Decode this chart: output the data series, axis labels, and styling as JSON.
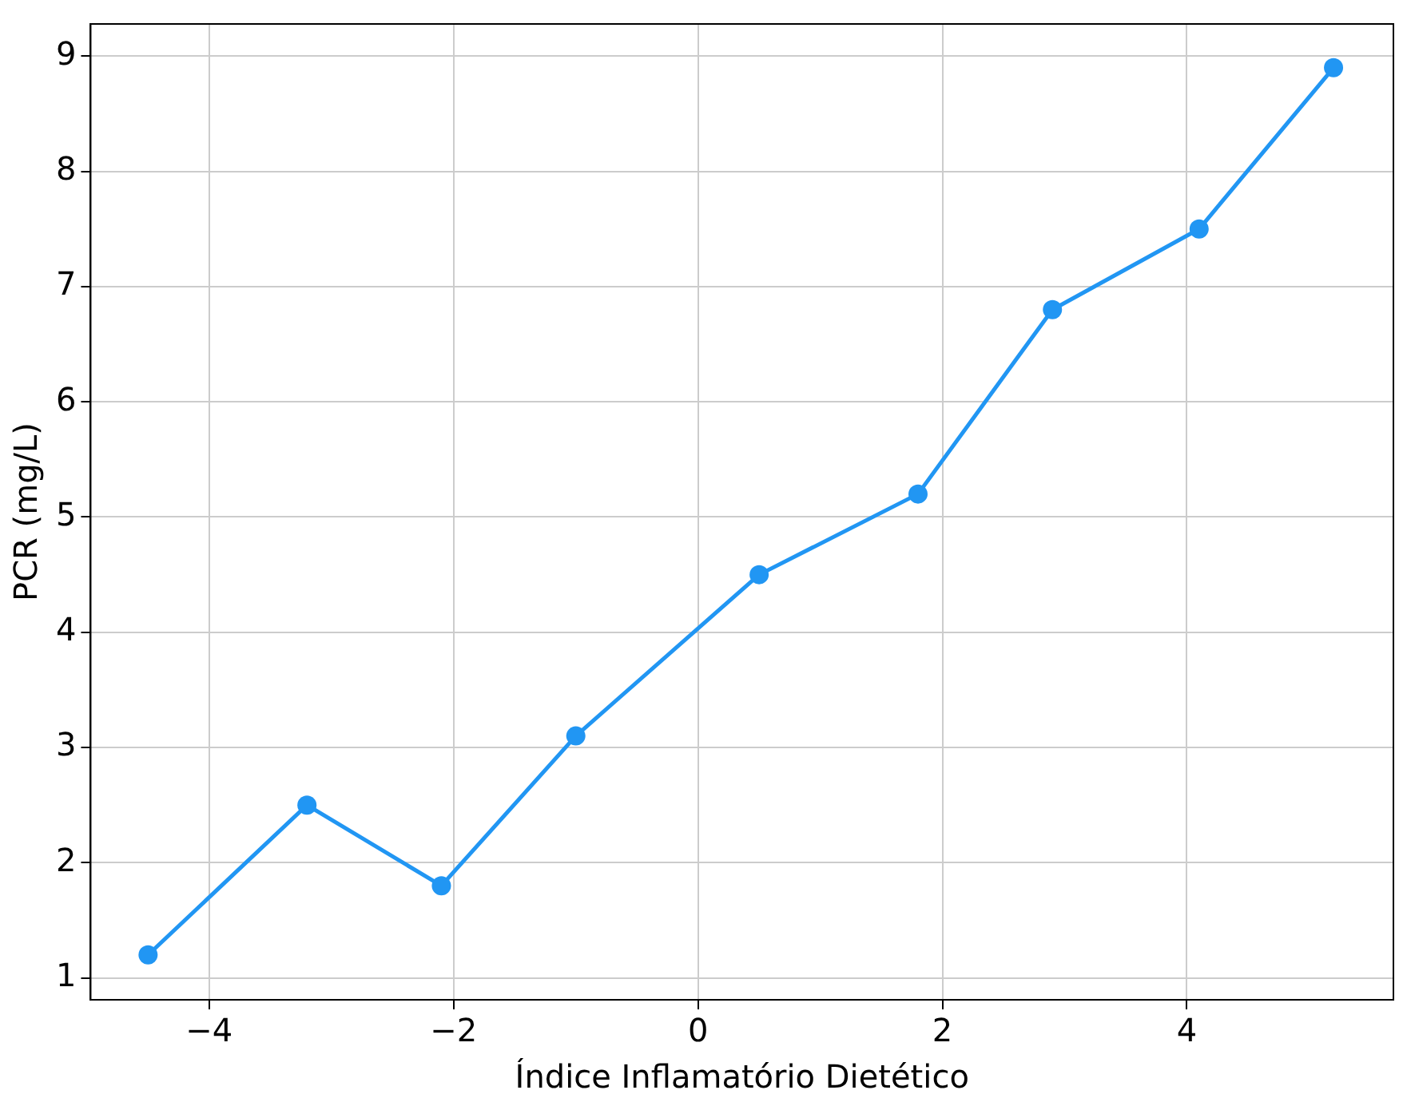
{
  "chart_data": {
    "type": "line",
    "xlabel": "Índice Inflamatório Dietético",
    "ylabel": "PCR (mg/L)",
    "x": [
      -4.5,
      -3.2,
      -2.1,
      -1.0,
      0.5,
      1.8,
      2.9,
      4.1,
      5.2
    ],
    "series": [
      {
        "color": "#2196f3",
        "values": [
          1.2,
          2.5,
          1.8,
          3.1,
          4.5,
          5.2,
          6.8,
          7.5,
          8.9
        ]
      }
    ],
    "xlim": [
      -4.97,
      5.69
    ],
    "xticks": [
      {
        "value": -4,
        "label": "−4"
      },
      {
        "value": -2,
        "label": "−2"
      },
      0,
      2,
      4
    ],
    "ylim": [
      0.81,
      9.28
    ],
    "yticks": [
      1,
      2,
      3,
      4,
      5,
      6,
      7,
      8,
      9
    ],
    "grid": true,
    "marker": "circle",
    "line_style": "solid",
    "legend": false
  }
}
